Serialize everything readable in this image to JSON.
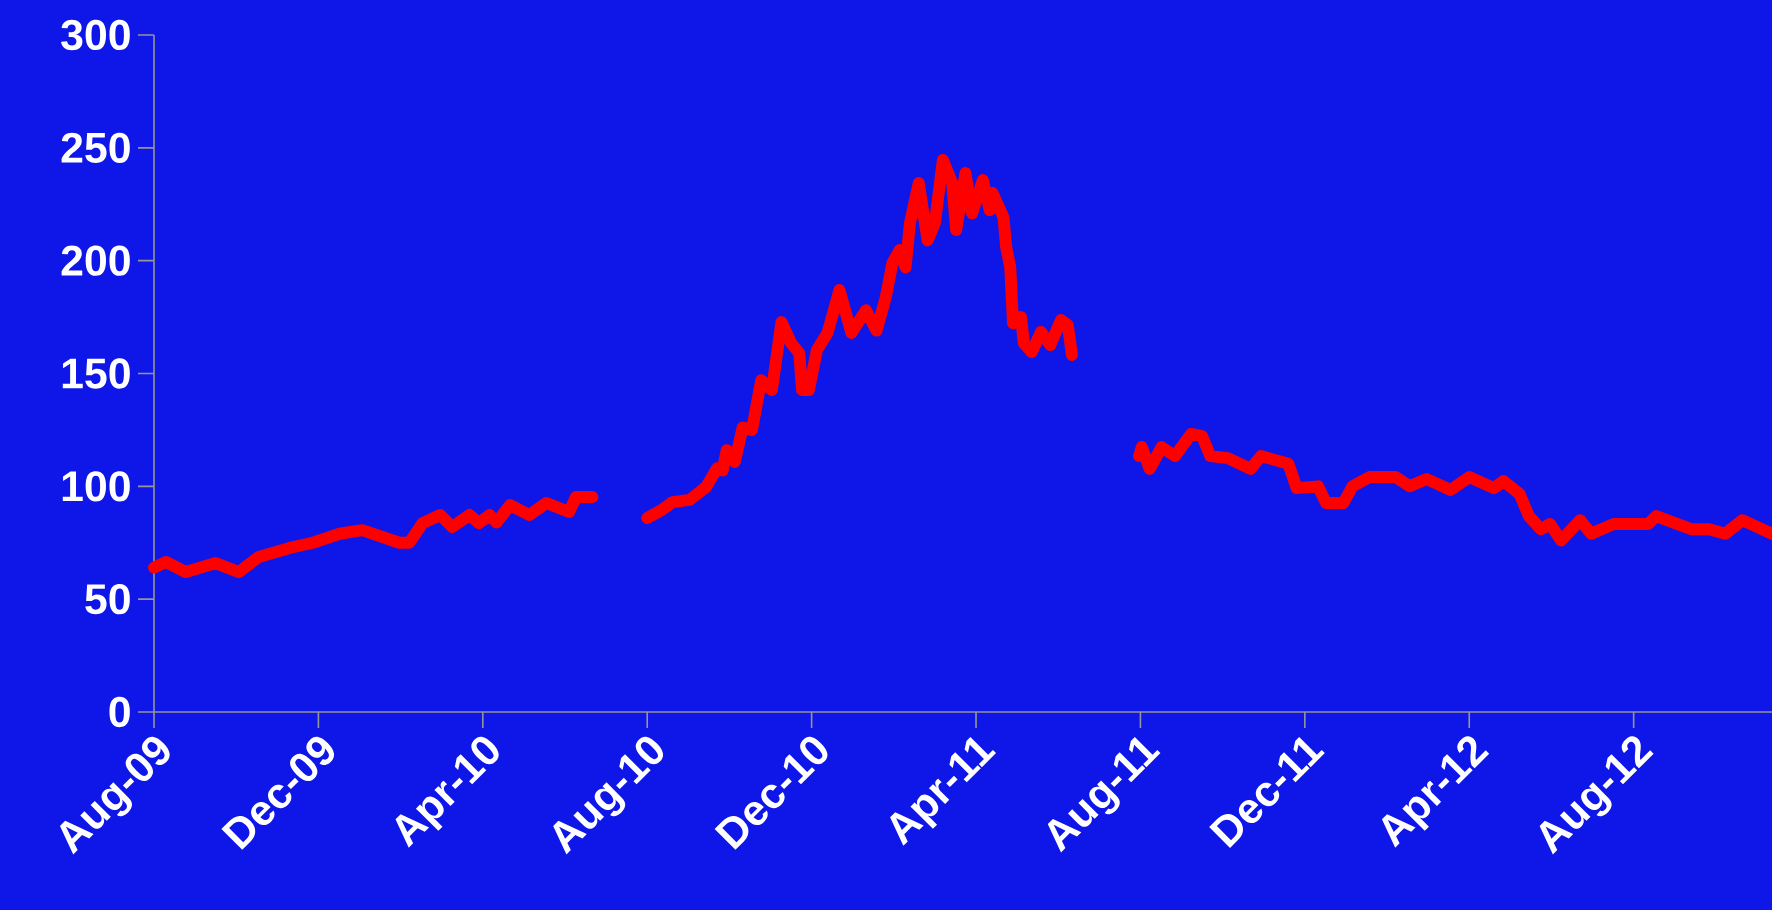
{
  "chart_data": {
    "type": "line",
    "color": "#ff0000",
    "marker": "none",
    "line_style": "solid",
    "x": [
      "2009-08-01",
      "2009-08-10",
      "2009-08-25",
      "2009-09-16",
      "2009-10-03",
      "2009-10-18",
      "2009-11-10",
      "2009-11-27",
      "2009-12-17",
      "2010-01-03",
      "2010-01-31",
      "2010-02-07",
      "2010-02-16",
      "2010-02-28",
      "2010-03-09",
      "2010-03-22",
      "2010-03-29",
      "2010-04-06",
      "2010-04-11",
      "2010-04-21",
      "2010-05-05",
      "2010-05-18",
      "2010-06-04",
      "2010-06-09",
      "2010-06-21",
      "2010-07-15",
      "2010-08-01",
      "2010-08-12",
      "2010-08-20",
      "2010-09-02",
      "2010-09-14",
      "2010-09-22",
      "2010-09-26",
      "2010-09-29",
      "2010-10-05",
      "2010-10-11",
      "2010-10-18",
      "2010-10-25",
      "2010-11-02",
      "2010-11-09",
      "2010-11-16",
      "2010-11-22",
      "2010-11-24",
      "2010-11-29",
      "2010-12-05",
      "2010-12-13",
      "2010-12-22",
      "2010-12-31",
      "2011-01-11",
      "2011-01-19",
      "2011-01-26",
      "2011-01-31",
      "2011-02-05",
      "2011-02-09",
      "2011-02-12",
      "2011-02-18",
      "2011-02-24",
      "2011-03-01",
      "2011-03-07",
      "2011-03-14",
      "2011-03-17",
      "2011-03-24",
      "2011-03-29",
      "2011-04-06",
      "2011-04-11",
      "2011-04-13",
      "2011-04-21",
      "2011-04-23",
      "2011-04-26",
      "2011-04-28",
      "2011-05-04",
      "2011-05-06",
      "2011-05-12",
      "2011-05-19",
      "2011-05-26",
      "2011-06-03",
      "2011-06-08",
      "2011-06-11",
      "2011-07-05",
      "2011-07-31",
      "2011-08-02",
      "2011-08-08",
      "2011-08-17",
      "2011-08-27",
      "2011-09-08",
      "2011-09-16",
      "2011-09-22",
      "2011-10-05",
      "2011-10-22",
      "2011-10-30",
      "2011-11-19",
      "2011-11-25",
      "2011-12-11",
      "2011-12-17",
      "2011-12-30",
      "2012-01-06",
      "2012-01-19",
      "2012-02-07",
      "2012-02-17",
      "2012-02-29",
      "2012-03-18",
      "2012-04-01",
      "2012-04-19",
      "2012-04-26",
      "2012-05-08",
      "2012-05-15",
      "2012-05-24",
      "2012-05-31",
      "2012-06-08",
      "2012-06-22",
      "2012-06-30",
      "2012-07-17",
      "2012-08-12",
      "2012-08-18",
      "2012-09-13",
      "2012-09-26",
      "2012-10-08",
      "2012-10-21",
      "2012-11-12"
    ],
    "values": [
      64,
      66.5,
      62,
      66,
      62,
      68.7,
      72.7,
      75,
      79,
      80.6,
      75,
      75,
      83.7,
      87.3,
      82,
      87.3,
      83.7,
      87.3,
      84,
      91.7,
      87.3,
      92.6,
      88.6,
      95.3,
      95.3,
      null,
      86,
      89.5,
      93,
      94,
      99.7,
      108,
      107,
      116,
      110.8,
      126,
      125,
      147,
      142.7,
      172.8,
      163.5,
      159,
      142.7,
      142.7,
      160.4,
      168,
      187,
      168,
      178,
      169,
      184,
      199,
      204.7,
      197,
      216.7,
      234.4,
      209,
      216.7,
      244.6,
      234.4,
      213.6,
      238.8,
      221,
      235.7,
      222.4,
      230,
      219.3,
      206,
      197,
      172.3,
      175,
      163.5,
      159.5,
      168.4,
      162.6,
      173.7,
      171.5,
      158.2,
      null,
      113.4,
      117.4,
      107.7,
      117.4,
      113.4,
      123.2,
      122.3,
      113.4,
      112.5,
      107.7,
      113.4,
      110,
      99.2,
      100,
      92.6,
      92.6,
      100,
      104.1,
      104.1,
      100,
      103.2,
      98.4,
      104.1,
      99.2,
      102.3,
      96.6,
      86.8,
      81,
      83.3,
      76,
      85,
      79,
      83.3,
      83.3,
      86.8,
      81,
      81,
      79,
      85,
      79
    ],
    "xlim": [
      "2009-08-01",
      "2012-11-12"
    ],
    "xticks": [
      {
        "value": "2009-08",
        "label": "Aug-09"
      },
      {
        "value": "2009-12",
        "label": "Dec-09"
      },
      {
        "value": "2010-04",
        "label": "Apr-10"
      },
      {
        "value": "2010-08",
        "label": "Aug-10"
      },
      {
        "value": "2010-12",
        "label": "Dec-10"
      },
      {
        "value": "2011-04",
        "label": "Apr-11"
      },
      {
        "value": "2011-08",
        "label": "Aug-11"
      },
      {
        "value": "2011-12",
        "label": "Dec-11"
      },
      {
        "value": "2012-04",
        "label": "Apr-12"
      },
      {
        "value": "2012-08",
        "label": "Aug-12"
      }
    ],
    "ylim": [
      0,
      300
    ],
    "yticks": [
      0,
      50,
      100,
      150,
      200,
      250,
      300
    ]
  }
}
